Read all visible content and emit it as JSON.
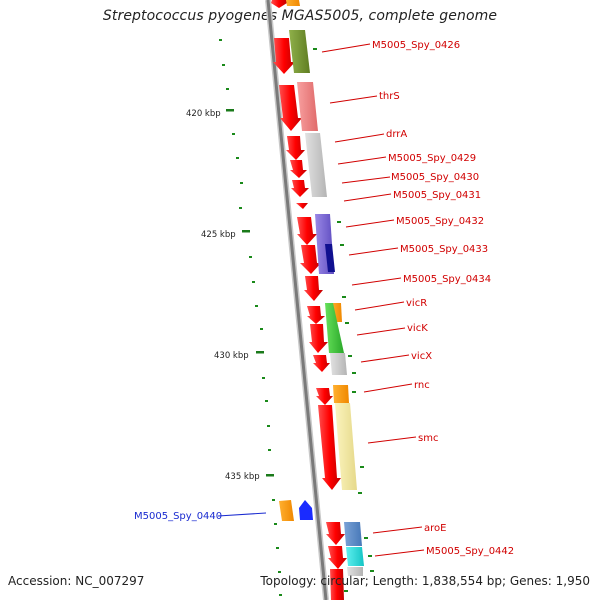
{
  "title": "Streptococcus pyogenes MGAS5005, complete genome",
  "footer": {
    "accession": "Accession: NC_007297",
    "summary": "Topology: circular; Length: 1,838,554 bp; Genes: 1,950"
  },
  "ticks": [
    {
      "label": "420 kbp"
    },
    {
      "label": "425 kbp"
    },
    {
      "label": "430 kbp"
    },
    {
      "label": "435 kbp"
    }
  ],
  "genes": [
    {
      "name": "M5005_Spy_0426",
      "color": "#d10000"
    },
    {
      "name": "thrS",
      "color": "#d10000"
    },
    {
      "name": "drrA",
      "color": "#d10000"
    },
    {
      "name": "M5005_Spy_0429",
      "color": "#d10000"
    },
    {
      "name": "M5005_Spy_0430",
      "color": "#d10000"
    },
    {
      "name": "M5005_Spy_0431",
      "color": "#d10000"
    },
    {
      "name": "M5005_Spy_0432",
      "color": "#d10000"
    },
    {
      "name": "M5005_Spy_0433",
      "color": "#d10000"
    },
    {
      "name": "M5005_Spy_0434",
      "color": "#d10000"
    },
    {
      "name": "vicR",
      "color": "#d10000"
    },
    {
      "name": "vicK",
      "color": "#d10000"
    },
    {
      "name": "vicX",
      "color": "#d10000"
    },
    {
      "name": "rnc",
      "color": "#d10000"
    },
    {
      "name": "smc",
      "color": "#d10000"
    },
    {
      "name": "M5005_Spy_0440",
      "color": "#1a2bd0"
    },
    {
      "name": "aroE",
      "color": "#d10000"
    },
    {
      "name": "M5005_Spy_0442",
      "color": "#d10000"
    }
  ],
  "colors": {
    "gene_strand": "#ff0000",
    "backbone": "#888888",
    "gc_dots": "#1a8a1a",
    "label_red": "#d10000",
    "label_blue": "#1a2bd0"
  }
}
